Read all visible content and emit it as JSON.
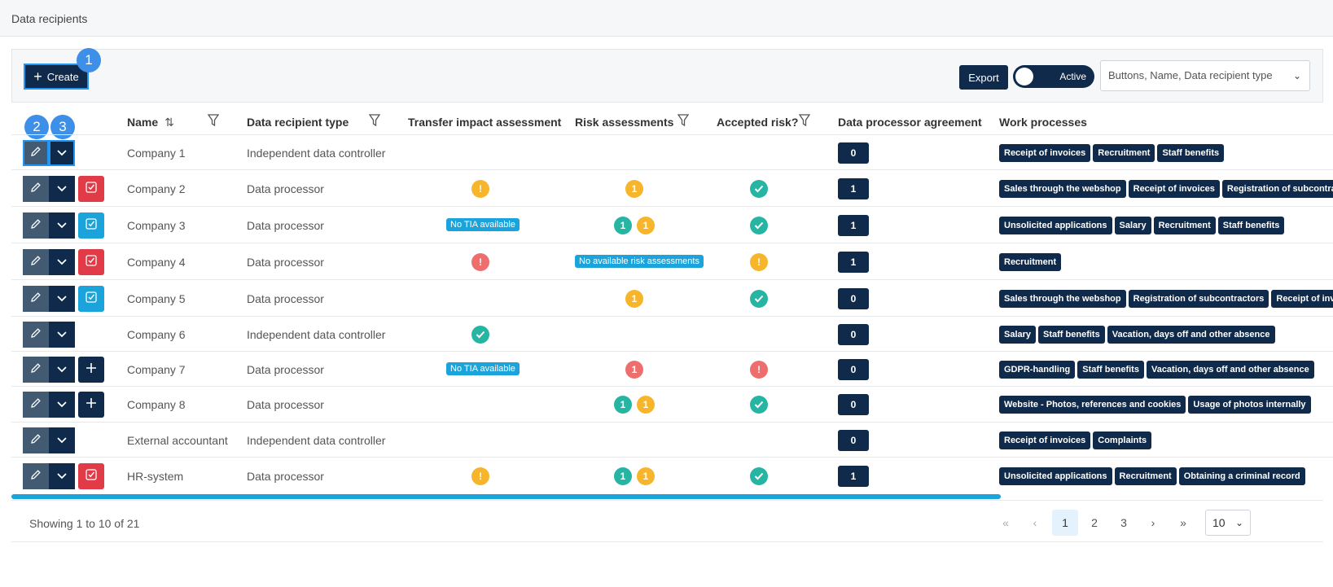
{
  "page_title": "Data recipients",
  "toolbar": {
    "create_label": "Create",
    "export_label": "Export",
    "toggle_label": "Active",
    "columns_select_value": "Buttons, Name, Data recipient type",
    "markers": [
      "1",
      "2",
      "3"
    ]
  },
  "columns": {
    "name": "Name",
    "type": "Data recipient type",
    "tia": "Transfer impact assessment",
    "risk": "Risk assessments",
    "accepted": "Accepted risk?",
    "dpa": "Data processor agreement",
    "work": "Work processes"
  },
  "rows": [
    {
      "name": "Company 1",
      "type": "Independent data controller",
      "status": "none",
      "tia": "",
      "tia_label": "",
      "risk": [],
      "risk_label": "",
      "accepted": "",
      "dpa": "0",
      "work": [
        "Receipt of invoices",
        "Recruitment",
        "Staff benefits"
      ]
    },
    {
      "name": "Company 2",
      "type": "Data processor",
      "status": "red",
      "tia": "orange",
      "tia_label": "",
      "risk": [
        "orange"
      ],
      "risk_label": "",
      "accepted": "green",
      "dpa": "1",
      "work": [
        "Sales through the webshop",
        "Receipt of invoices",
        "Registration of subcontractors"
      ]
    },
    {
      "name": "Company 3",
      "type": "Data processor",
      "status": "blue",
      "tia": "",
      "tia_label": "No TIA available",
      "risk": [
        "green",
        "orange"
      ],
      "risk_label": "",
      "accepted": "green",
      "dpa": "1",
      "work": [
        "Unsolicited applications",
        "Salary",
        "Recruitment",
        "Staff benefits"
      ]
    },
    {
      "name": "Company 4",
      "type": "Data processor",
      "status": "red",
      "tia": "red",
      "tia_label": "",
      "risk": [],
      "risk_label": "No available risk assessments",
      "accepted": "orange",
      "dpa": "1",
      "work": [
        "Recruitment"
      ]
    },
    {
      "name": "Company 5",
      "type": "Data processor",
      "status": "blue",
      "tia": "",
      "tia_label": "",
      "risk": [
        "orange"
      ],
      "risk_label": "",
      "accepted": "green",
      "dpa": "0",
      "work": [
        "Sales through the webshop",
        "Registration of subcontractors",
        "Receipt of invoices"
      ]
    },
    {
      "name": "Company 6",
      "type": "Independent data controller",
      "status": "none",
      "tia": "green",
      "tia_label": "",
      "risk": [],
      "risk_label": "",
      "accepted": "",
      "dpa": "0",
      "work": [
        "Salary",
        "Staff benefits",
        "Vacation, days off and other absence"
      ]
    },
    {
      "name": "Company 7",
      "type": "Data processor",
      "status": "plus",
      "tia": "",
      "tia_label": "No TIA available",
      "risk": [
        "red"
      ],
      "risk_label": "",
      "accepted": "red",
      "dpa": "0",
      "work": [
        "GDPR-handling",
        "Staff benefits",
        "Vacation, days off and other absence"
      ]
    },
    {
      "name": "Company 8",
      "type": "Data processor",
      "status": "plus",
      "tia": "",
      "tia_label": "",
      "risk": [
        "green",
        "orange"
      ],
      "risk_label": "",
      "accepted": "green",
      "dpa": "0",
      "work": [
        "Website - Photos, references and cookies",
        "Usage of photos internally"
      ]
    },
    {
      "name": "External accountant",
      "type": "Independent data controller",
      "status": "none",
      "tia": "",
      "tia_label": "",
      "risk": [],
      "risk_label": "",
      "accepted": "",
      "dpa": "0",
      "work": [
        "Receipt of invoices",
        "Complaints"
      ]
    },
    {
      "name": "HR-system",
      "type": "Data processor",
      "status": "red",
      "tia": "orange",
      "tia_label": "",
      "risk": [
        "green",
        "orange"
      ],
      "risk_label": "",
      "accepted": "green",
      "dpa": "1",
      "work": [
        "Unsolicited applications",
        "Recruitment",
        "Obtaining a criminal record"
      ]
    }
  ],
  "risk_dot_value": "1",
  "footer": {
    "showing": "Showing 1 to 10 of 21",
    "pages": [
      "1",
      "2",
      "3"
    ],
    "first": "«",
    "prev": "‹",
    "next": "›",
    "last": "»",
    "page_size": "10"
  },
  "colors": {
    "navy": "#0f2a4a",
    "accent_blue": "#1aa4db",
    "red": "#e03b47",
    "green": "#26b5a3",
    "orange": "#f7b52c"
  }
}
